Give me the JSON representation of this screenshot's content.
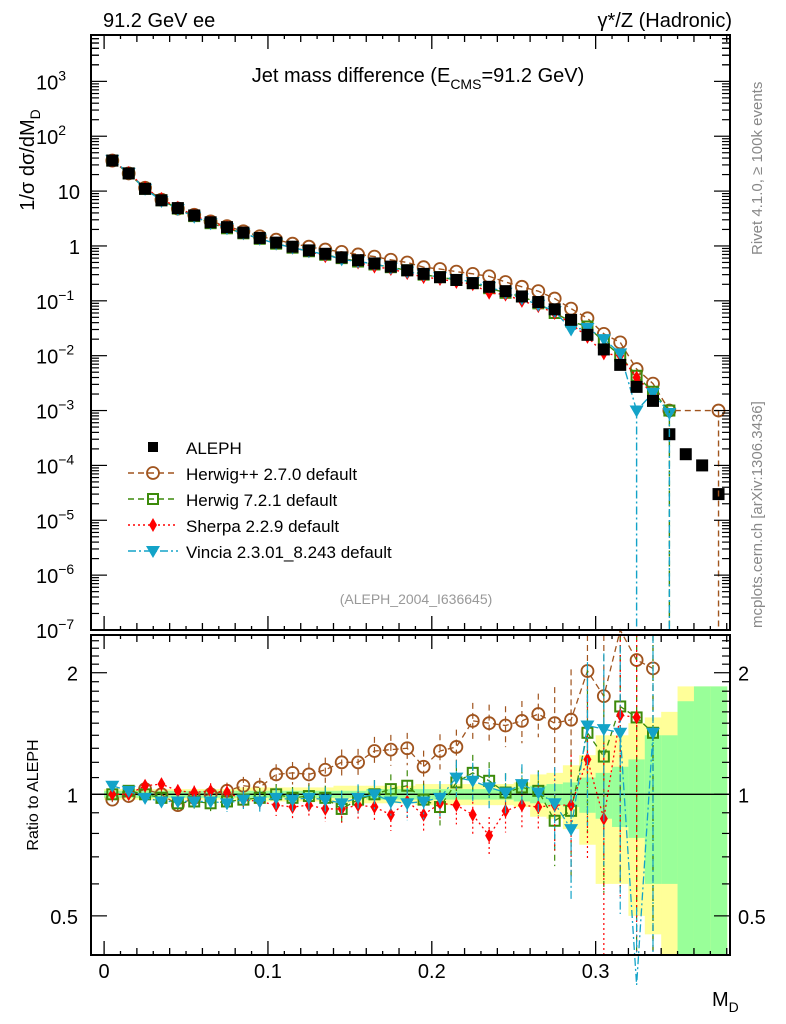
{
  "header": {
    "left": "91.2 GeV ee",
    "right": "γ*/Z (Hadronic)"
  },
  "side_notes": {
    "rivet": "Rivet 4.1.0, ≥ 100k events",
    "mcplots": "mcplots.cern.ch [arXiv:1306.3436]"
  },
  "chart_data": [
    {
      "type": "line",
      "panel": "main",
      "title": "Jet mass difference (E_CMS=91.2 GeV)",
      "title_parts": {
        "pre": "Jet mass difference (E",
        "sub": "CMS",
        "post": "=91.2 GeV)"
      },
      "xlabel": "M_D",
      "ylabel": "1/σ dσ/dM_D",
      "ylabel_parts": {
        "pre": "1/σ  dσ/dM",
        "sub": "D"
      },
      "xlabel_parts": {
        "pre": "M",
        "sub": "D"
      },
      "xscale": "linear",
      "yscale": "log",
      "xlim": [
        -0.008,
        0.382
      ],
      "ylim": [
        1e-07,
        7000
      ],
      "x_ticks": [
        {
          "v": 0,
          "label": "0"
        },
        {
          "v": 0.1,
          "label": "0.1"
        },
        {
          "v": 0.2,
          "label": "0.2"
        },
        {
          "v": 0.3,
          "label": "0.3"
        }
      ],
      "y_ticks": [
        {
          "v": 1000,
          "label": "10",
          "exp": "3"
        },
        {
          "v": 100,
          "label": "10",
          "exp": "2"
        },
        {
          "v": 10,
          "label": "10",
          "exp": ""
        },
        {
          "v": 1,
          "label": "1",
          "exp": ""
        },
        {
          "v": 0.1,
          "label": "10",
          "exp": "−1"
        },
        {
          "v": 0.01,
          "label": "10",
          "exp": "−2"
        },
        {
          "v": 0.001,
          "label": "10",
          "exp": "−3"
        },
        {
          "v": 0.0001,
          "label": "10",
          "exp": "−4"
        },
        {
          "v": 1e-05,
          "label": "10",
          "exp": "−5"
        },
        {
          "v": 1e-06,
          "label": "10",
          "exp": "−6"
        },
        {
          "v": 1e-07,
          "label": "10",
          "exp": "−7"
        }
      ],
      "annotation": "(ALEPH_2004_I636645)",
      "legend_position": "bottom-left",
      "x": [
        0.005,
        0.015,
        0.025,
        0.035,
        0.045,
        0.055,
        0.065,
        0.075,
        0.085,
        0.095,
        0.105,
        0.115,
        0.125,
        0.135,
        0.145,
        0.155,
        0.165,
        0.175,
        0.185,
        0.195,
        0.205,
        0.215,
        0.225,
        0.235,
        0.245,
        0.255,
        0.265,
        0.275,
        0.285,
        0.295,
        0.305,
        0.315,
        0.325,
        0.335,
        0.345,
        0.355,
        0.365,
        0.375
      ],
      "series": [
        {
          "name": "ALEPH",
          "color": "#000000",
          "marker": "square-filled",
          "line": "none",
          "values": [
            36,
            21,
            11,
            6.8,
            4.9,
            3.6,
            2.7,
            2.2,
            1.75,
            1.4,
            1.15,
            0.97,
            0.83,
            0.72,
            0.62,
            0.55,
            0.48,
            0.42,
            0.36,
            0.31,
            0.27,
            0.24,
            0.21,
            0.18,
            0.15,
            0.12,
            0.095,
            0.07,
            0.045,
            0.024,
            0.013,
            0.0068,
            0.0027,
            0.0015,
            0.00037,
            0.00016,
            0.0001,
            3e-05
          ]
        },
        {
          "name": "Herwig++ 2.7.0 default",
          "color": "#a0541e",
          "marker": "circle-open",
          "line": "dashed",
          "values": [
            36,
            21,
            11.5,
            7,
            4.8,
            3.7,
            2.8,
            2.3,
            1.85,
            1.5,
            1.3,
            1.1,
            0.97,
            0.86,
            0.78,
            0.7,
            0.64,
            0.56,
            0.5,
            0.41,
            0.38,
            0.34,
            0.31,
            0.28,
            0.22,
            0.18,
            0.15,
            0.11,
            0.072,
            0.048,
            0.025,
            0.0175,
            0.0057,
            0.0031,
            0.001,
            null,
            null,
            0.001
          ]
        },
        {
          "name": "Herwig 7.2.1 default",
          "color": "#3c8a0a",
          "marker": "square-open",
          "line": "dashed",
          "values": [
            36,
            21,
            11,
            6.8,
            4.8,
            3.5,
            2.6,
            2.1,
            1.7,
            1.35,
            1.1,
            0.93,
            0.8,
            0.69,
            0.6,
            0.52,
            0.46,
            0.41,
            0.36,
            0.3,
            0.27,
            0.24,
            0.21,
            0.17,
            0.14,
            0.12,
            0.09,
            0.06,
            0.042,
            0.034,
            0.018,
            0.01,
            0.0043,
            0.0022,
            0.001,
            null,
            null,
            null
          ]
        },
        {
          "name": "Sherpa 2.2.9 default",
          "color": "#ff0000",
          "marker": "diamond-filled",
          "line": "dotted",
          "values": [
            36,
            21.5,
            11.5,
            7.2,
            5,
            3.6,
            2.7,
            2.2,
            1.7,
            1.35,
            1.1,
            0.93,
            0.8,
            0.65,
            0.6,
            0.5,
            0.42,
            0.38,
            0.32,
            0.27,
            0.25,
            0.22,
            0.2,
            0.14,
            0.13,
            0.1,
            0.08,
            0.06,
            0.038,
            0.022,
            0.011,
            0.01,
            0.004,
            0.002,
            null,
            null,
            null,
            null
          ]
        },
        {
          "name": "Vincia 2.3.01_8.243 default",
          "color": "#13a3c8",
          "marker": "triangle-down-filled",
          "line": "dashdot",
          "values": [
            37,
            21.5,
            11,
            6.6,
            4.7,
            3.4,
            2.6,
            2.1,
            1.7,
            1.35,
            1.1,
            0.93,
            0.8,
            0.7,
            0.57,
            0.52,
            0.47,
            0.4,
            0.34,
            0.3,
            0.27,
            0.25,
            0.22,
            0.18,
            0.14,
            0.11,
            0.085,
            0.065,
            0.03,
            0.032,
            0.02,
            0.011,
            0.001,
            0.0021,
            0.0009,
            null,
            null,
            null
          ]
        }
      ]
    },
    {
      "type": "line",
      "panel": "ratio",
      "ylabel": "Ratio to ALEPH",
      "xlabel": "M_D",
      "xscale": "linear",
      "yscale": "log",
      "xlim": [
        -0.008,
        0.382
      ],
      "ylim": [
        0.4,
        2.48
      ],
      "y_ticks": [
        {
          "v": 0.5,
          "label": "0.5"
        },
        {
          "v": 1,
          "label": "1"
        },
        {
          "v": 2,
          "label": "2"
        }
      ],
      "x_ticks": [
        {
          "v": 0,
          "label": "0"
        },
        {
          "v": 0.1,
          "label": "0.1"
        },
        {
          "v": 0.2,
          "label": "0.2"
        },
        {
          "v": 0.3,
          "label": "0.3"
        }
      ],
      "reference_line": 1,
      "uncertainty_band": {
        "inner_color": "#99ff99",
        "outer_color": "#ffff99",
        "inner_halfwidth": [
          0.02,
          0.02,
          0.02,
          0.02,
          0.02,
          0.02,
          0.02,
          0.02,
          0.02,
          0.02,
          0.02,
          0.02,
          0.02,
          0.02,
          0.02,
          0.02,
          0.03,
          0.03,
          0.03,
          0.03,
          0.03,
          0.03,
          0.03,
          0.03,
          0.03,
          0.04,
          0.05,
          0.06,
          0.07,
          0.1,
          0.13,
          0.17,
          0.22,
          0.4,
          0.4,
          0.7,
          0.85,
          0.85
        ],
        "outer_halfwidth": [
          0.03,
          0.03,
          0.03,
          0.03,
          0.03,
          0.03,
          0.03,
          0.03,
          0.04,
          0.04,
          0.04,
          0.04,
          0.04,
          0.04,
          0.05,
          0.05,
          0.05,
          0.05,
          0.05,
          0.06,
          0.06,
          0.06,
          0.06,
          0.06,
          0.06,
          0.07,
          0.12,
          0.13,
          0.18,
          0.25,
          0.4,
          0.4,
          0.5,
          0.55,
          0.6,
          0.85,
          0.85,
          0.85
        ]
      },
      "series": [
        {
          "name": "Herwig++ 2.7.0 default",
          "color": "#a0541e",
          "marker": "circle-open",
          "line": "dashed",
          "values": [
            0.97,
            0.99,
            1.03,
            1.0,
            0.94,
            0.98,
            1.0,
            1.02,
            1.05,
            1.04,
            1.12,
            1.13,
            1.12,
            1.15,
            1.2,
            1.2,
            1.28,
            1.29,
            1.3,
            1.17,
            1.28,
            1.31,
            1.52,
            1.5,
            1.48,
            1.52,
            1.58,
            1.5,
            1.53,
            2.02,
            1.75,
            2.55,
            2.15,
            2.05,
            null,
            null,
            null,
            null
          ]
        },
        {
          "name": "Herwig 7.2.1 default",
          "color": "#3c8a0a",
          "marker": "square-open",
          "line": "dashed",
          "values": [
            1.0,
            1.02,
            1.0,
            0.98,
            0.95,
            0.96,
            0.95,
            0.96,
            0.97,
            0.98,
            1.0,
            0.98,
            0.99,
            0.98,
            0.92,
            0.97,
            1.0,
            1.03,
            1.05,
            0.97,
            0.93,
            1.07,
            1.13,
            1.08,
            1.01,
            1.04,
            1.02,
            0.86,
            0.91,
            1.42,
            1.24,
            1.65,
            1.55,
            1.42,
            null,
            null,
            null,
            null
          ]
        },
        {
          "name": "Sherpa 2.2.9 default",
          "color": "#ff0000",
          "marker": "diamond-filled",
          "line": "dotted",
          "values": [
            1.0,
            1.0,
            1.05,
            1.06,
            1.02,
            1.01,
            1.02,
            1.01,
            0.97,
            0.96,
            0.94,
            0.93,
            0.94,
            0.92,
            0.92,
            0.94,
            0.93,
            0.89,
            0.96,
            0.89,
            0.95,
            0.94,
            0.89,
            0.79,
            0.91,
            0.94,
            0.93,
            0.94,
            0.94,
            1.22,
            0.87,
            1.57,
            1.55,
            null,
            null,
            null,
            null,
            null
          ]
        },
        {
          "name": "Vincia 2.3.01_8.243 default",
          "color": "#13a3c8",
          "marker": "triangle-down-filled",
          "line": "dashdot",
          "values": [
            1.05,
            1.02,
            0.98,
            0.96,
            0.96,
            0.96,
            0.96,
            0.95,
            0.97,
            0.96,
            0.98,
            0.97,
            0.98,
            0.97,
            0.95,
            0.98,
            1.0,
            0.96,
            0.95,
            0.96,
            0.98,
            1.1,
            1.08,
            1.04,
            1.01,
            1.06,
            1.01,
            0.95,
            0.82,
            1.48,
            1.45,
            1.42,
            0.3,
            1.42,
            null,
            null,
            null,
            null
          ]
        }
      ]
    }
  ]
}
